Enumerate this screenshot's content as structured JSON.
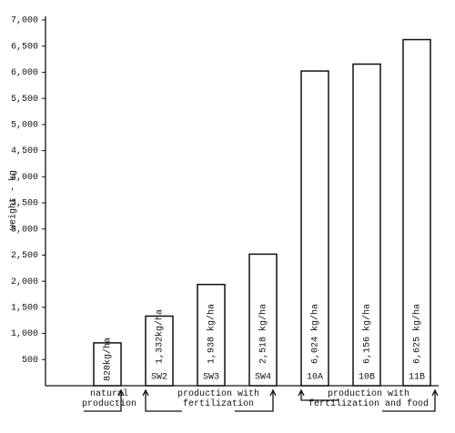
{
  "chart_data": {
    "type": "bar",
    "ylabel": "weight - kg",
    "categories": [
      null,
      "SW2",
      "SW3",
      "SW4",
      "10A",
      "10B",
      "11B"
    ],
    "values": [
      820,
      1332,
      1938,
      2518,
      6024,
      6156,
      6625
    ],
    "value_labels": [
      "820kg/ha",
      "1,332kg/ha",
      "1,938 kg/ha",
      "2,518 kg/ha",
      "6,024 kg/ha",
      "6,156 kg/ha",
      "6,625 kg/ha"
    ],
    "color": "#ffffff",
    "ylim": [
      0,
      7000
    ],
    "yticks": [
      500,
      {
        "value": 1000,
        "label": "1,000"
      },
      {
        "value": 1500,
        "label": "1,500"
      },
      {
        "value": 2000,
        "label": "2,000"
      },
      {
        "value": 2500,
        "label": "2,500"
      },
      {
        "value": 3000,
        "label": "3,000"
      },
      {
        "value": 3500,
        "label": "3,500"
      },
      {
        "value": 4000,
        "label": "4,000"
      },
      {
        "value": 4500,
        "label": "4,500"
      },
      {
        "value": 5000,
        "label": "5,000"
      },
      {
        "value": 5500,
        "label": "5,500"
      },
      {
        "value": 6000,
        "label": "6,000"
      },
      {
        "value": 6500,
        "label": "6,500"
      },
      {
        "value": 7000,
        "label": "7,000"
      }
    ],
    "grid": false,
    "groups": [
      "natural production",
      "production with fertilization",
      "production with fertilization and food"
    ]
  }
}
